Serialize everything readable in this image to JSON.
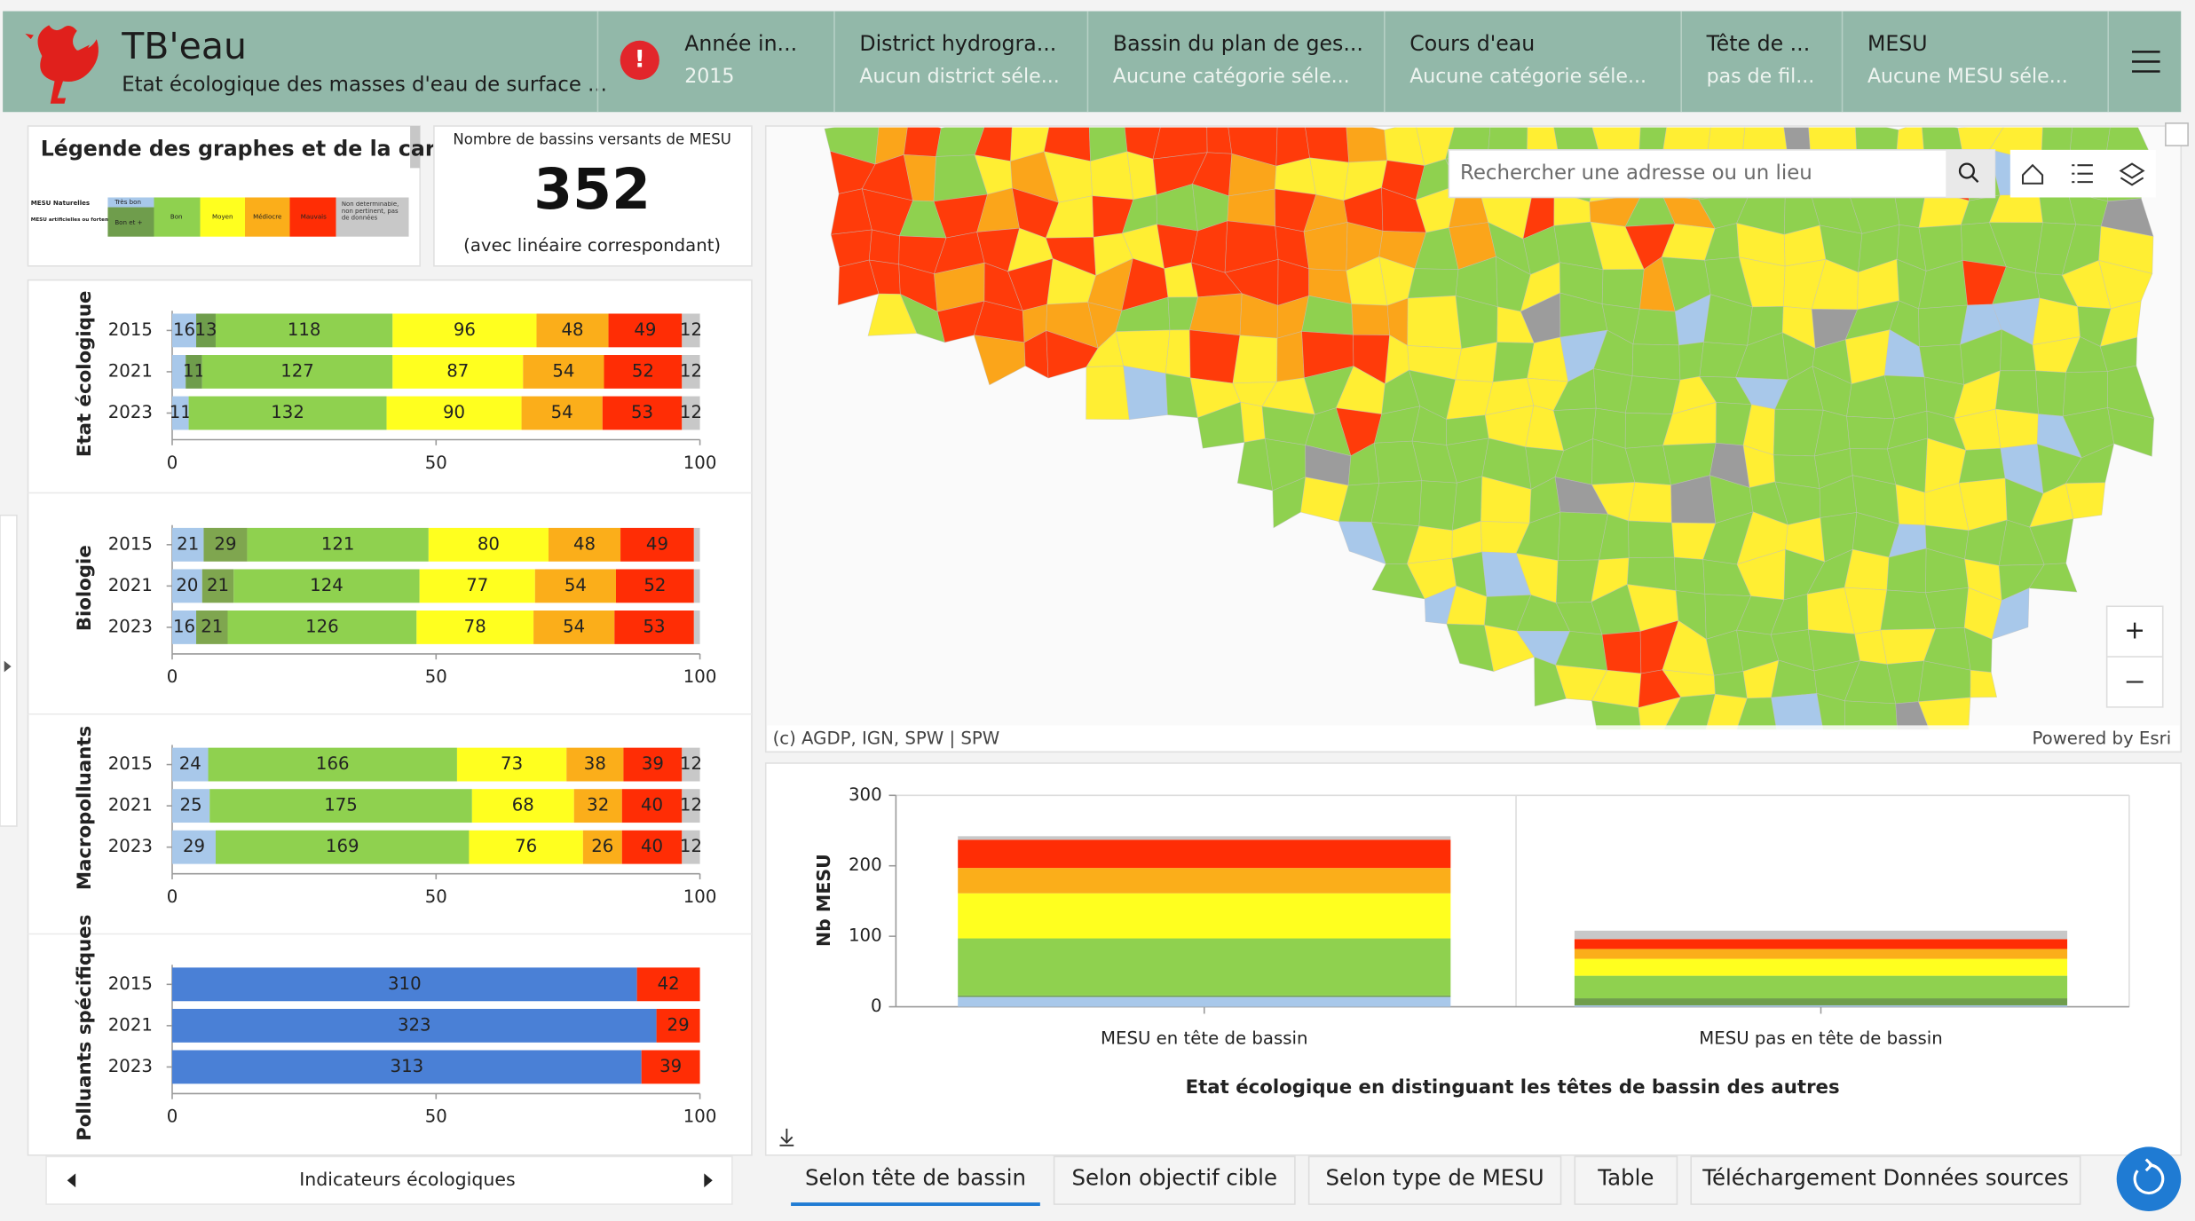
{
  "header": {
    "title": "TB'eau",
    "subtitle": "Etat écologique des masses d'eau de surface ...",
    "filters": [
      {
        "label": "Année in...",
        "value": "2015"
      },
      {
        "label": "District hydrogra...",
        "value": "Aucun district séle..."
      },
      {
        "label": "Bassin du plan de ges...",
        "value": "Aucune catégorie séle..."
      },
      {
        "label": "Cours d'eau",
        "value": "Aucune catégorie séle..."
      },
      {
        "label": "Tête de ...",
        "value": "pas de fil..."
      },
      {
        "label": "MESU",
        "value": "Aucune MESU séle..."
      }
    ]
  },
  "legend_panel": {
    "title": "Légende des graphes et de la carte",
    "rows": [
      "MESU Naturelles",
      "MESU artificielles ou fortement modifiées"
    ],
    "classes": [
      "Très bon",
      "Bon et +",
      "Bon",
      "Moyen",
      "Médiocre",
      "Mauvais",
      "Non déterminable, non pertinent, pas de données"
    ]
  },
  "kpi": {
    "label": "Nombre de bassins versants de MESU",
    "value": 352,
    "note": "(avec linéaire correspondant)"
  },
  "chart_data": [
    {
      "type": "bar",
      "orientation": "horizontal",
      "stacking": "percent",
      "ylabel": "Etat écologique",
      "categories": [
        "2015",
        "2021",
        "2023"
      ],
      "xlim": [
        0,
        100
      ],
      "xticks": [
        0,
        50,
        100
      ],
      "series": [
        {
          "color": "#a8c8ea",
          "values": [
            16,
            9,
            11
          ]
        },
        {
          "color": "#6f9d4c",
          "values": [
            13,
            11,
            0
          ]
        },
        {
          "color": "#8fd14f",
          "values": [
            118,
            127,
            132
          ]
        },
        {
          "color": "#ffff1f",
          "values": [
            96,
            87,
            90
          ]
        },
        {
          "color": "#fbae1a",
          "values": [
            48,
            54,
            54
          ]
        },
        {
          "color": "#ff2d05",
          "values": [
            49,
            52,
            53
          ]
        },
        {
          "color": "#c8c8c8",
          "values": [
            12,
            12,
            12
          ]
        }
      ]
    },
    {
      "type": "bar",
      "orientation": "horizontal",
      "stacking": "percent",
      "ylabel": "Biologie",
      "categories": [
        "2015",
        "2021",
        "2023"
      ],
      "xlim": [
        0,
        100
      ],
      "xticks": [
        0,
        50,
        100
      ],
      "series": [
        {
          "color": "#a8c8ea",
          "values": [
            21,
            20,
            16
          ]
        },
        {
          "color": "#7fa64f",
          "values": [
            29,
            21,
            21
          ]
        },
        {
          "color": "#8fd14f",
          "values": [
            121,
            124,
            126
          ]
        },
        {
          "color": "#ffff1f",
          "values": [
            80,
            77,
            78
          ]
        },
        {
          "color": "#fbae1a",
          "values": [
            48,
            54,
            54
          ]
        },
        {
          "color": "#ff2d05",
          "values": [
            49,
            52,
            53
          ]
        },
        {
          "color": "#c8c8c8",
          "values": [
            4,
            4,
            4
          ]
        }
      ]
    },
    {
      "type": "bar",
      "orientation": "horizontal",
      "stacking": "percent",
      "ylabel": "Macropolluants",
      "categories": [
        "2015",
        "2021",
        "2023"
      ],
      "xlim": [
        0,
        100
      ],
      "xticks": [
        0,
        50,
        100
      ],
      "series": [
        {
          "color": "#a8c8ea",
          "values": [
            24,
            25,
            29
          ]
        },
        {
          "color": "#8fd14f",
          "values": [
            166,
            175,
            169
          ]
        },
        {
          "color": "#ffff1f",
          "values": [
            73,
            68,
            76
          ]
        },
        {
          "color": "#fbae1a",
          "values": [
            38,
            32,
            26
          ]
        },
        {
          "color": "#ff2d05",
          "values": [
            39,
            40,
            40
          ]
        },
        {
          "color": "#c8c8c8",
          "values": [
            12,
            12,
            12
          ]
        }
      ]
    },
    {
      "type": "bar",
      "orientation": "horizontal",
      "stacking": "percent",
      "ylabel": "Polluants spécifiques",
      "categories": [
        "2015",
        "2021",
        "2023"
      ],
      "xlim": [
        0,
        100
      ],
      "xticks": [
        0,
        50,
        100
      ],
      "series": [
        {
          "color": "#4a80d6",
          "values": [
            310,
            323,
            313
          ]
        },
        {
          "color": "#ff2d05",
          "values": [
            42,
            29,
            39
          ]
        }
      ]
    },
    {
      "type": "bar",
      "orientation": "vertical",
      "stacking": "stacked",
      "title": "Etat écologique en distinguant les têtes de bassin des autres",
      "ylabel": "Nb MESU",
      "categories": [
        "MESU en tête de bassin",
        "MESU pas en tête de bassin"
      ],
      "ylim": [
        0,
        300
      ],
      "yticks": [
        0,
        100,
        200,
        300
      ],
      "series": [
        {
          "color": "#a8c8ea",
          "values": [
            14,
            2
          ]
        },
        {
          "color": "#6f9d4c",
          "values": [
            2,
            10
          ]
        },
        {
          "color": "#8fd14f",
          "values": [
            81,
            32
          ]
        },
        {
          "color": "#ffff1f",
          "values": [
            64,
            24
          ]
        },
        {
          "color": "#fbae1a",
          "values": [
            36,
            14
          ]
        },
        {
          "color": "#ff2d05",
          "values": [
            40,
            14
          ]
        },
        {
          "color": "#c8c8c8",
          "values": [
            5,
            12
          ]
        }
      ]
    }
  ],
  "nav": {
    "label": "Indicateurs écologiques"
  },
  "map": {
    "search_placeholder": "Rechercher une adresse ou un lieu",
    "attribution": "(c) AGDP, IGN, SPW | SPW",
    "powered": "Powered by Esri"
  },
  "tabs": [
    "Selon tête de bassin",
    "Selon objectif cible",
    "Selon type de MESU",
    "Table",
    "Téléchargement Données sources"
  ]
}
